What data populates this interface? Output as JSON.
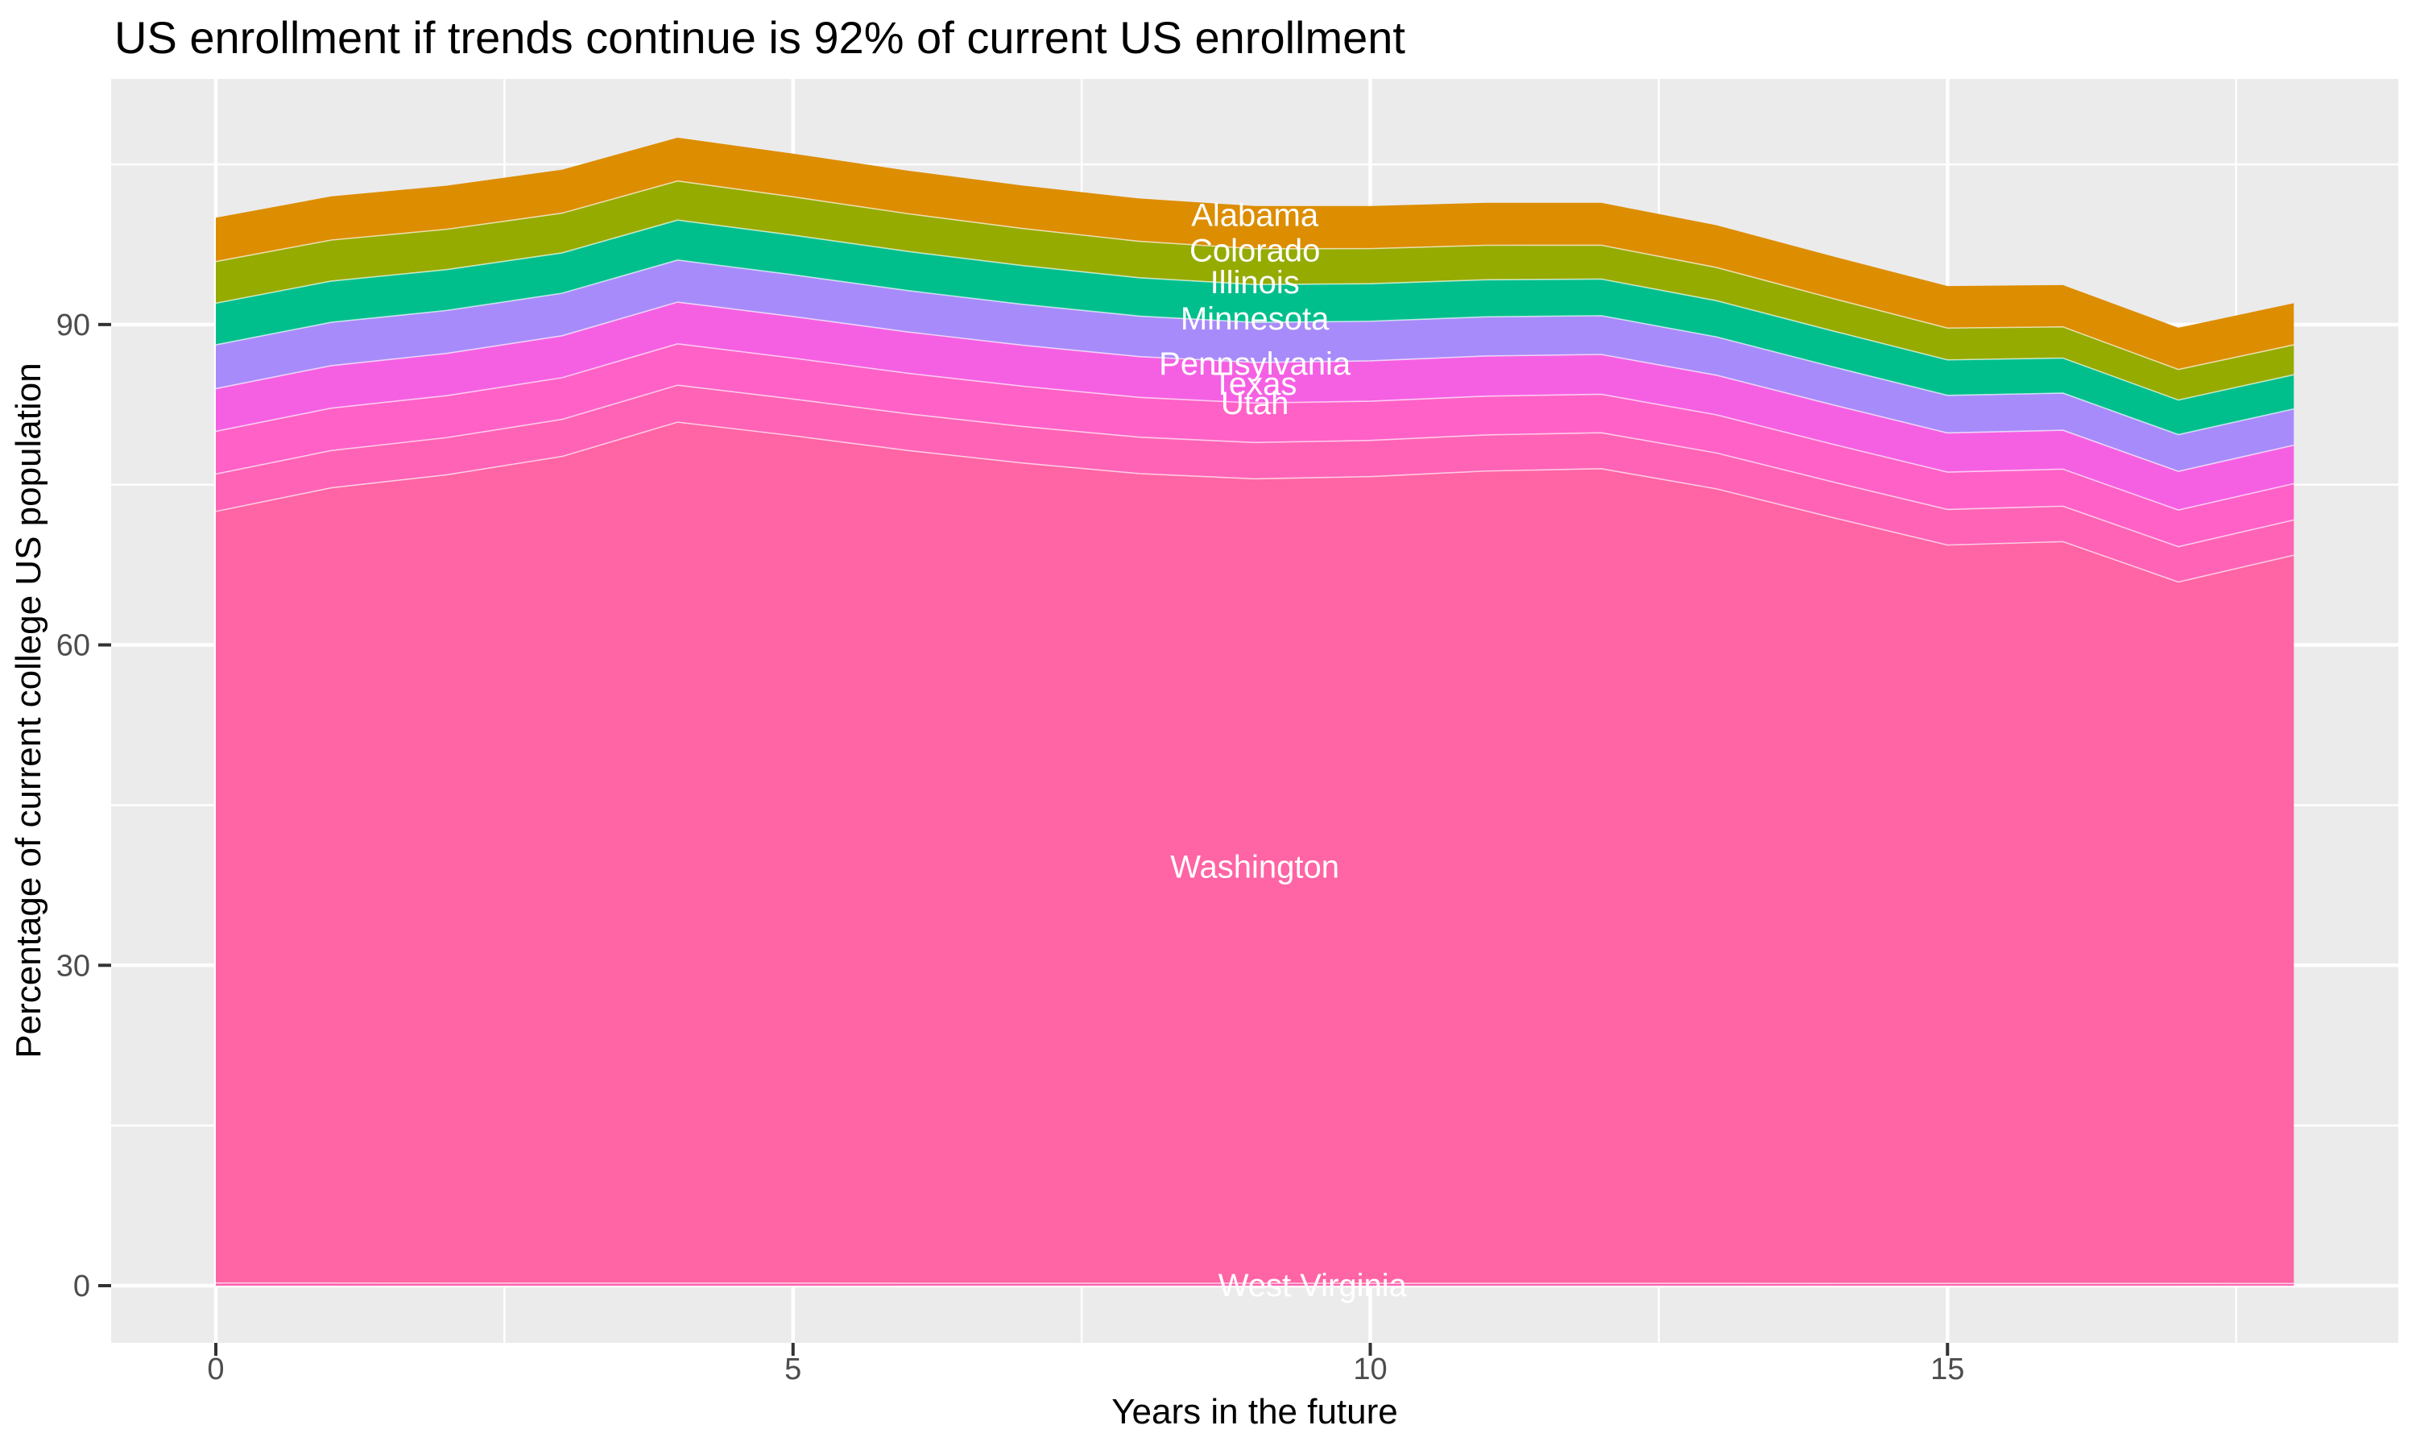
{
  "title": "US enrollment if trends continue is 92% of current US enrollment",
  "styles": {
    "panel_background": "#EBEBEB",
    "grid_color": "#FFFFFF",
    "tick_mark_color": "#333333",
    "tick_label_color": "#4D4D4D",
    "title_color": "#000000",
    "area_label_color": "#FFFFFF"
  },
  "chart_data": {
    "type": "area",
    "stacked": true,
    "title": "US enrollment if trends continue is 92% of current US enrollment",
    "xlabel": "Years in the future",
    "ylabel": "Percentage of current college US population",
    "x": [
      0,
      1,
      2,
      3,
      4,
      5,
      6,
      7,
      8,
      9,
      10,
      11,
      12,
      13,
      14,
      15,
      16,
      17,
      18
    ],
    "x_ticks": [
      0,
      5,
      10,
      15
    ],
    "y_ticks": [
      0,
      30,
      60,
      90
    ],
    "x_minor": [
      2.5,
      7.5,
      12.5,
      17.5
    ],
    "y_minor": [
      15,
      45,
      75,
      105
    ],
    "xlim": [
      -0.9,
      18.9
    ],
    "ylim": [
      -5.4,
      112.9
    ],
    "grid": "on",
    "legend_position": "none",
    "series": [
      {
        "name": "Alabama",
        "color": "#DD8D00",
        "label_x": 9.0,
        "label_y": 100.2,
        "values": [
          4.1,
          4.09,
          4.08,
          4.07,
          4.06,
          4.04,
          4.03,
          4.02,
          4.01,
          4.0,
          3.99,
          3.98,
          3.97,
          3.96,
          3.94,
          3.93,
          3.92,
          3.91,
          3.9
        ]
      },
      {
        "name": "Colorado",
        "color": "#95AB00",
        "label_x": 9.0,
        "label_y": 96.9,
        "values": [
          3.9,
          3.84,
          3.78,
          3.72,
          3.66,
          3.59,
          3.53,
          3.47,
          3.41,
          3.35,
          3.29,
          3.23,
          3.17,
          3.11,
          3.04,
          2.98,
          2.92,
          2.86,
          2.8
        ]
      },
      {
        "name": "Illinois",
        "color": "#00BF8D",
        "label_x": 9.0,
        "label_y": 93.9,
        "values": [
          3.9,
          3.86,
          3.82,
          3.78,
          3.74,
          3.71,
          3.67,
          3.63,
          3.59,
          3.55,
          3.51,
          3.47,
          3.43,
          3.39,
          3.36,
          3.32,
          3.28,
          3.24,
          3.2
        ]
      },
      {
        "name": "Minnesota",
        "color": "#A88BFA",
        "label_x": 9.0,
        "label_y": 90.5,
        "values": [
          4.1,
          4.06,
          4.02,
          3.98,
          3.94,
          3.91,
          3.87,
          3.83,
          3.79,
          3.75,
          3.71,
          3.67,
          3.63,
          3.59,
          3.56,
          3.52,
          3.48,
          3.44,
          3.4
        ]
      },
      {
        "name": "Pennsylvania",
        "color": "#F560E3",
        "label_x": 9.0,
        "label_y": 86.3,
        "values": [
          4.0,
          3.98,
          3.96,
          3.93,
          3.91,
          3.89,
          3.87,
          3.84,
          3.82,
          3.8,
          3.78,
          3.76,
          3.73,
          3.71,
          3.69,
          3.67,
          3.64,
          3.62,
          3.6
        ]
      },
      {
        "name": "Texas",
        "color": "#FF61C7",
        "label_x": 9.0,
        "label_y": 84.4,
        "values": [
          4.0,
          3.97,
          3.93,
          3.9,
          3.87,
          3.83,
          3.8,
          3.77,
          3.73,
          3.7,
          3.67,
          3.63,
          3.6,
          3.57,
          3.53,
          3.5,
          3.47,
          3.43,
          3.4
        ]
      },
      {
        "name": "Utah",
        "color": "#FF63B6",
        "label_x": 9.0,
        "label_y": 82.6,
        "values": [
          3.5,
          3.49,
          3.48,
          3.47,
          3.46,
          3.44,
          3.43,
          3.42,
          3.41,
          3.4,
          3.39,
          3.38,
          3.37,
          3.36,
          3.34,
          3.33,
          3.32,
          3.31,
          3.3
        ]
      },
      {
        "name": "Washington",
        "color": "#FF64A4",
        "label_x": 9.0,
        "label_y": 39.2,
        "values": [
          72.25,
          74.46,
          75.69,
          77.41,
          80.62,
          79.35,
          77.97,
          76.79,
          75.81,
          75.32,
          75.54,
          76.06,
          76.28,
          74.39,
          71.73,
          69.14,
          69.46,
          65.68,
          68.2
        ]
      },
      {
        "name": "West Virginia",
        "color": "#FF62B0",
        "label_x": 9.5,
        "label_y": 0.0,
        "values": [
          0.25,
          0.25,
          0.24,
          0.24,
          0.24,
          0.24,
          0.23,
          0.23,
          0.23,
          0.23,
          0.22,
          0.22,
          0.22,
          0.22,
          0.21,
          0.21,
          0.21,
          0.21,
          0.2
        ]
      }
    ]
  }
}
